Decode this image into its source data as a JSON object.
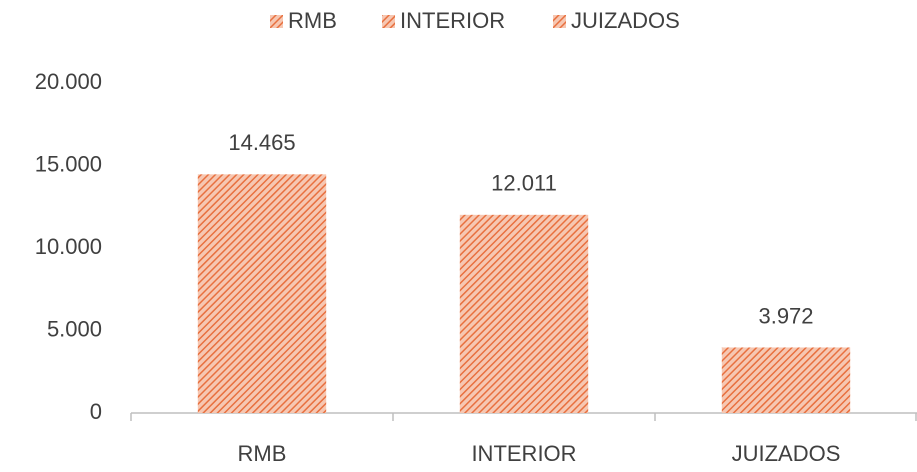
{
  "chart_data": {
    "type": "bar",
    "categories": [
      "RMB",
      "INTERIOR",
      "JUIZADOS"
    ],
    "values": [
      14465,
      12011,
      3972
    ],
    "value_labels": [
      "14.465",
      "12.011",
      "3.972"
    ],
    "color": "#e8703f",
    "ylim": [
      0,
      20000
    ],
    "yticks": [
      0,
      {
        "value": 5000,
        "label": "5.000"
      },
      {
        "value": 10000,
        "label": "10.000"
      },
      {
        "value": 15000,
        "label": "15.000"
      },
      {
        "value": 20000,
        "label": "20.000"
      }
    ],
    "grid": false
  }
}
